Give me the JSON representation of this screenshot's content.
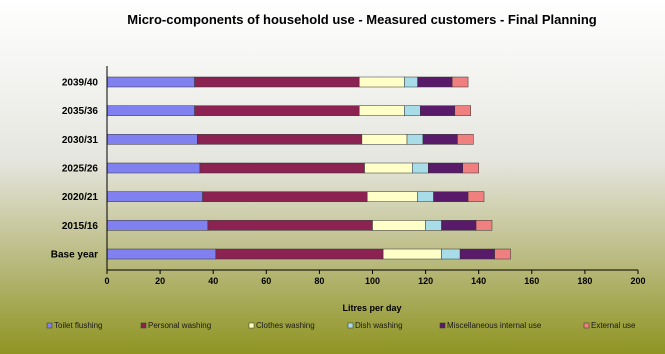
{
  "chart_data": {
    "type": "bar",
    "orientation": "horizontal",
    "stacked": true,
    "title": "Micro-components of household use - Measured customers - Final Planning",
    "xlabel": "Litres per day",
    "ylabel": "",
    "xlim": [
      0,
      200
    ],
    "xticks": [
      0,
      20,
      40,
      60,
      80,
      100,
      120,
      140,
      160,
      180,
      200
    ],
    "grid": false,
    "legend_position": "bottom",
    "categories": [
      "Base year",
      "2015/16",
      "2020/21",
      "2025/26",
      "2030/31",
      "2035/36",
      "2039/40"
    ],
    "series": [
      {
        "name": "Toilet flushing",
        "color": "#8080F0",
        "values": [
          41,
          38,
          36,
          35,
          34,
          33,
          33
        ]
      },
      {
        "name": "Personal washing",
        "color": "#8B2252",
        "values": [
          63,
          62,
          62,
          62,
          62,
          62,
          62
        ]
      },
      {
        "name": "Clothes washing",
        "color": "#FFFFC8",
        "values": [
          22,
          20,
          19,
          18,
          17,
          17,
          17
        ]
      },
      {
        "name": "Dish washing",
        "color": "#A8DCE8",
        "values": [
          7,
          6,
          6,
          6,
          6,
          6,
          5
        ]
      },
      {
        "name": "Miscellaneous internal use",
        "color": "#5A1A6A",
        "values": [
          13,
          13,
          13,
          13,
          13,
          13,
          13
        ]
      },
      {
        "name": "External use",
        "color": "#F08080",
        "values": [
          6,
          6,
          6,
          6,
          6,
          6,
          6
        ]
      }
    ]
  }
}
